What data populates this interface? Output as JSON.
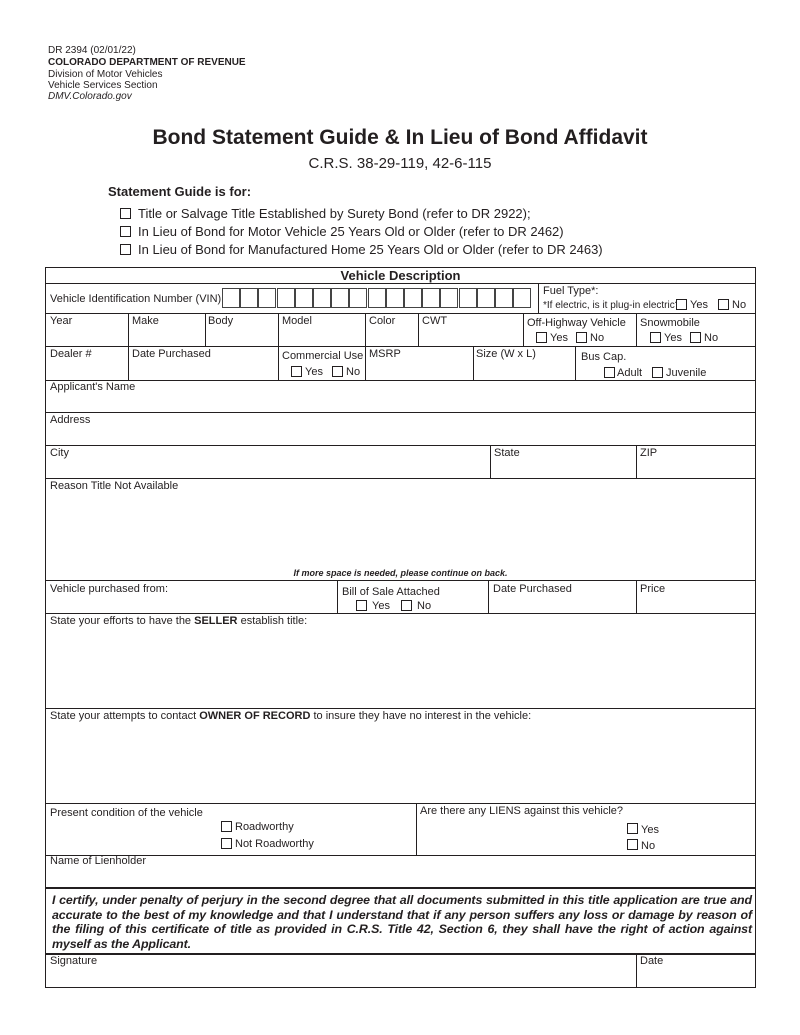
{
  "header": {
    "form_number": "DR 2394 (02/01/22)",
    "department": "COLORADO DEPARTMENT OF REVENUE",
    "division": "Division of Motor Vehicles",
    "section": "Vehicle Services Section",
    "website": "DMV.Colorado.gov"
  },
  "title": "Bond Statement Guide & In Lieu of Bond Affidavit",
  "statute": "C.R.S. 38-29-119, 42-6-115",
  "guide": {
    "heading": "Statement Guide is for:",
    "options": [
      "Title or Salvage Title Established by Surety Bond (refer to DR 2922);",
      "In Lieu of Bond for Motor Vehicle 25 Years Old or Older (refer to DR 2462)",
      "In Lieu of Bond for Manufactured Home 25 Years Old or Older (refer to DR 2463)"
    ]
  },
  "vehicle": {
    "section_title": "Vehicle Description",
    "vin_label": "Vehicle Identification Number (VIN)",
    "fuel_type_label": "Fuel Type*:",
    "plugin_label": "*If electric, is it plug-in electric?",
    "yes": "Yes",
    "no": "No",
    "year": "Year",
    "make": "Make",
    "body": "Body",
    "model": "Model",
    "color": "Color",
    "cwt": "CWT",
    "off_highway": "Off-Highway Vehicle",
    "snowmobile": "Snowmobile",
    "dealer": "Dealer #",
    "date_purchased": "Date Purchased",
    "commercial_use": "Commercial Use",
    "msrp": "MSRP",
    "size": "Size (W x L)",
    "bus_cap": "Bus Cap.",
    "adult": "Adult",
    "juvenile": "Juvenile"
  },
  "applicant": {
    "name": "Applicant's Name",
    "address": "Address",
    "city": "City",
    "state": "State",
    "zip": "ZIP",
    "reason": "Reason Title Not Available",
    "more_space": "If more space is needed, please continue on back."
  },
  "purchase": {
    "from": "Vehicle purchased from:",
    "bill_of_sale": "Bill of Sale Attached",
    "yes": "Yes",
    "no": "No",
    "date_purchased": "Date Purchased",
    "price": "Price"
  },
  "efforts": {
    "seller_pre": "State your efforts to have the ",
    "seller_bold": "SELLER",
    "seller_post": " establish title:",
    "owner_pre": "State your attempts to contact ",
    "owner_bold": "OWNER OF RECORD",
    "owner_post": " to insure they have no interest in the vehicle:"
  },
  "condition": {
    "label": "Present condition of the vehicle",
    "roadworthy": "Roadworthy",
    "not_roadworthy": "Not Roadworthy",
    "liens_label": "Are there any LIENS against this vehicle?",
    "yes": "Yes",
    "no": "No",
    "lienholder": "Name of Lienholder"
  },
  "certification": "I certify, under penalty of perjury in the second degree that all documents submitted in this title application are true and accurate to the best of my knowledge and that I understand that if any person suffers any loss or damage by reason of the filing of this certificate of title as provided in C.R.S. Title 42, Section 6, they shall have the right of action against myself as the Applicant.",
  "signature": {
    "signature": "Signature",
    "date": "Date"
  }
}
